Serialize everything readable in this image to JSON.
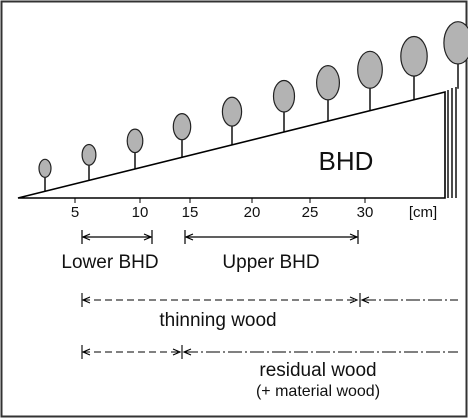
{
  "diagram": {
    "slope_label": "BHD",
    "axis_ticks": [
      "5",
      "10",
      "15",
      "20",
      "25",
      "30"
    ],
    "axis_unit": "[cm]",
    "ranges": {
      "lower": "Lower BHD",
      "upper": "Upper BHD"
    },
    "assortments": {
      "thinning": "thinning wood",
      "residual": "residual wood",
      "residual_note": "(+ material wood)"
    }
  }
}
